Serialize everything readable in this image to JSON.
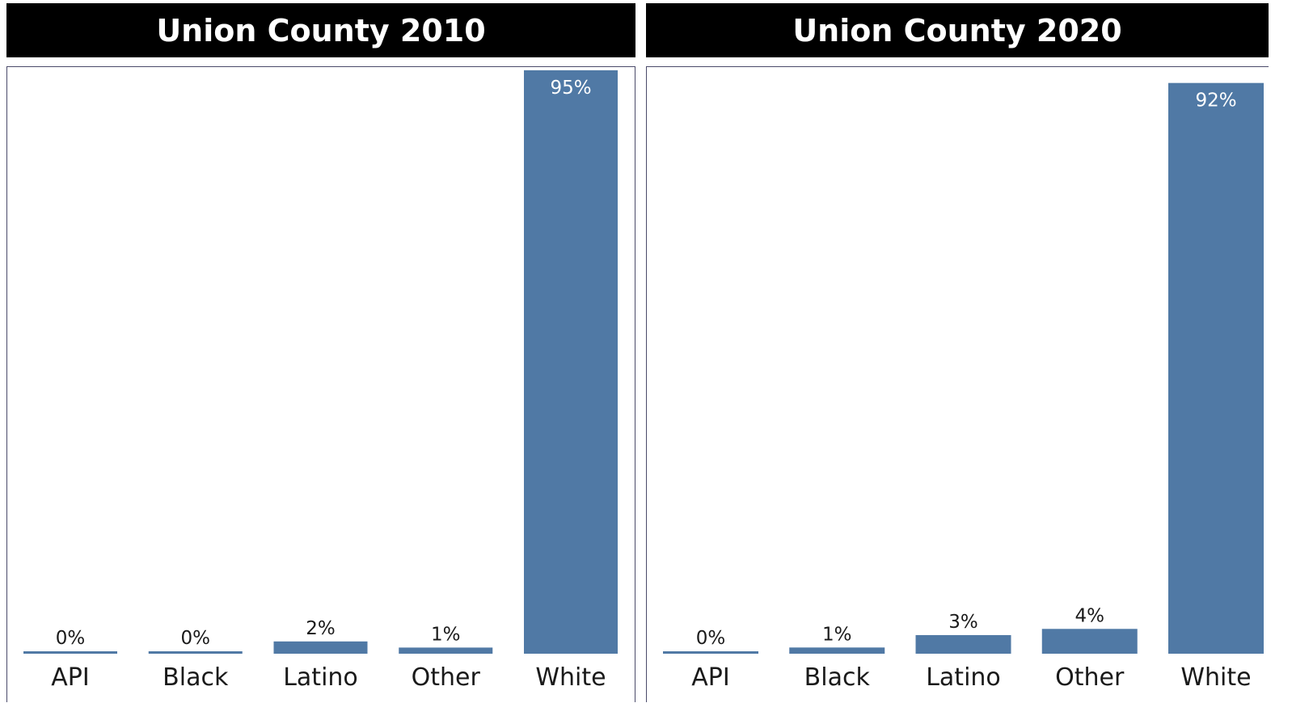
{
  "colors": {
    "bar": "#5079a5",
    "header_bg": "#000000",
    "header_text": "#ffffff"
  },
  "chart_data": [
    {
      "type": "bar",
      "title": "Union County 2010",
      "categories": [
        "API",
        "Black",
        "Latino",
        "Other",
        "White"
      ],
      "values": [
        0,
        0,
        2,
        1,
        95
      ],
      "value_labels": [
        "0%",
        "0%",
        "2%",
        "1%",
        "95%"
      ],
      "ylim": [
        0,
        95
      ],
      "grid": false,
      "xlabel": "",
      "ylabel": ""
    },
    {
      "type": "bar",
      "title": "Union County 2020",
      "categories": [
        "API",
        "Black",
        "Latino",
        "Other",
        "White"
      ],
      "values": [
        0,
        1,
        3,
        4,
        92
      ],
      "value_labels": [
        "0%",
        "1%",
        "3%",
        "4%",
        "92%"
      ],
      "ylim": [
        0,
        93
      ],
      "grid": false,
      "xlabel": "",
      "ylabel": ""
    }
  ]
}
